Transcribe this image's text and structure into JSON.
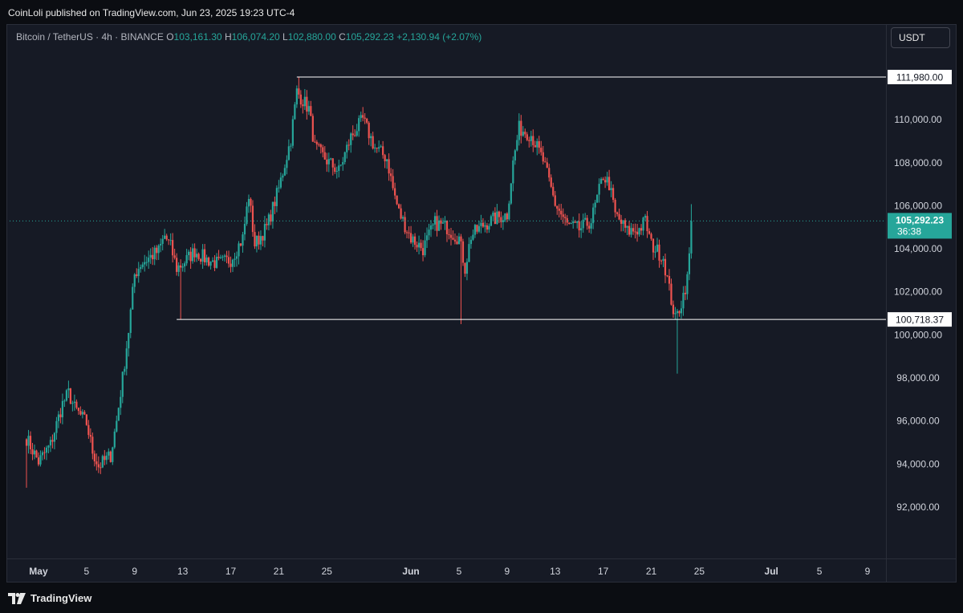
{
  "publish_line": "CoinLoli published on TradingView.com, Jun 23, 2025 19:23 UTC-4",
  "symbol": "Bitcoin / TetherUS · 4h · BINANCE",
  "ohlc": {
    "o_label": "O",
    "o": "103,161.30",
    "h_label": "H",
    "h": "106,074.20",
    "l_label": "L",
    "l": "102,880.00",
    "c_label": "C",
    "c": "105,292.23",
    "change": "+2,130.94 (+2.07%)"
  },
  "quote_currency": "USDT",
  "brand": "TradingView",
  "colors": {
    "up": "#26a69a",
    "down": "#ef5350",
    "background": "#161a25",
    "level_line": "#ffffff"
  },
  "chart_data": {
    "type": "candlestick",
    "y_ticks": [
      92000,
      94000,
      96000,
      98000,
      100000,
      102000,
      104000,
      106000,
      108000,
      110000
    ],
    "y_tick_labels": [
      "92,000.00",
      "94,000.00",
      "96,000.00",
      "98,000.00",
      "100,000.00",
      "102,000.00",
      "104,000.00",
      "106,000.00",
      "108,000.00",
      "110,000.00"
    ],
    "x_ticks": [
      {
        "label": "May",
        "day": 1
      },
      {
        "label": "5",
        "day": 5
      },
      {
        "label": "9",
        "day": 9
      },
      {
        "label": "13",
        "day": 13
      },
      {
        "label": "17",
        "day": 17
      },
      {
        "label": "21",
        "day": 21
      },
      {
        "label": "25",
        "day": 25
      },
      {
        "label": "Jun",
        "day": 32
      },
      {
        "label": "5",
        "day": 36
      },
      {
        "label": "9",
        "day": 40
      },
      {
        "label": "13",
        "day": 44
      },
      {
        "label": "17",
        "day": 48
      },
      {
        "label": "21",
        "day": 52
      },
      {
        "label": "25",
        "day": 56
      },
      {
        "label": "Jul",
        "day": 62
      },
      {
        "label": "5",
        "day": 66
      },
      {
        "label": "9",
        "day": 70
      }
    ],
    "price_levels": [
      {
        "value": 111980,
        "label": "111,980.00"
      },
      {
        "value": 100718.37,
        "label": "100,718.37"
      }
    ],
    "current_price": {
      "value": 105292.23,
      "label": "105,292.23",
      "countdown": "36:38"
    },
    "closes": [
      [
        0.0,
        95200
      ],
      [
        1.0,
        94100
      ],
      [
        2.0,
        94900
      ],
      [
        3.0,
        96800
      ],
      [
        3.5,
        97300
      ],
      [
        4.0,
        96600
      ],
      [
        5.0,
        95900
      ],
      [
        5.5,
        94600
      ],
      [
        6.0,
        93900
      ],
      [
        7.0,
        94400
      ],
      [
        7.5,
        96000
      ],
      [
        8.0,
        98000
      ],
      [
        8.5,
        100200
      ],
      [
        9.0,
        102800
      ],
      [
        9.5,
        103300
      ],
      [
        10.0,
        103500
      ],
      [
        11.0,
        103900
      ],
      [
        11.5,
        104600
      ],
      [
        12.0,
        104100
      ],
      [
        12.5,
        103100
      ],
      [
        13.0,
        103300
      ],
      [
        14.0,
        103900
      ],
      [
        15.0,
        103500
      ],
      [
        16.0,
        103300
      ],
      [
        17.0,
        103500
      ],
      [
        18.0,
        104500
      ],
      [
        18.5,
        106500
      ],
      [
        19.0,
        104200
      ],
      [
        20.0,
        105000
      ],
      [
        21.0,
        106800
      ],
      [
        22.0,
        109100
      ],
      [
        22.5,
        111300
      ],
      [
        23.0,
        110900
      ],
      [
        23.5,
        110500
      ],
      [
        24.0,
        108700
      ],
      [
        25.0,
        108100
      ],
      [
        26.0,
        107600
      ],
      [
        27.0,
        109200
      ],
      [
        28.0,
        110000
      ],
      [
        29.0,
        108700
      ],
      [
        30.0,
        108200
      ],
      [
        30.5,
        106800
      ],
      [
        31.0,
        105700
      ],
      [
        32.0,
        104500
      ],
      [
        33.0,
        104000
      ],
      [
        34.0,
        105200
      ],
      [
        35.0,
        105000
      ],
      [
        35.5,
        104700
      ],
      [
        36.0,
        104500
      ],
      [
        36.5,
        103100
      ],
      [
        37.0,
        104600
      ],
      [
        38.0,
        105100
      ],
      [
        39.0,
        105400
      ],
      [
        40.0,
        105600
      ],
      [
        40.5,
        108000
      ],
      [
        41.0,
        109600
      ],
      [
        42.0,
        109300
      ],
      [
        43.0,
        108100
      ],
      [
        44.0,
        106100
      ],
      [
        45.0,
        105100
      ],
      [
        46.0,
        104900
      ],
      [
        47.0,
        105300
      ],
      [
        48.0,
        107400
      ],
      [
        48.5,
        107000
      ],
      [
        49.0,
        105600
      ],
      [
        50.0,
        104800
      ],
      [
        51.0,
        104900
      ],
      [
        51.5,
        105300
      ],
      [
        52.0,
        104200
      ],
      [
        53.0,
        103600
      ],
      [
        53.5,
        102100
      ],
      [
        54.0,
        100700
      ],
      [
        54.5,
        101500
      ],
      [
        55.0,
        102600
      ],
      [
        55.4,
        105292
      ]
    ],
    "wick_extremes": [
      {
        "day": 0.0,
        "low": 92900
      },
      {
        "day": 12.8,
        "low": 100718
      },
      {
        "day": 22.6,
        "high": 111980
      },
      {
        "day": 36.2,
        "low": 100500
      },
      {
        "day": 54.2,
        "low": 98200
      },
      {
        "day": 55.4,
        "high": 106074
      }
    ]
  }
}
